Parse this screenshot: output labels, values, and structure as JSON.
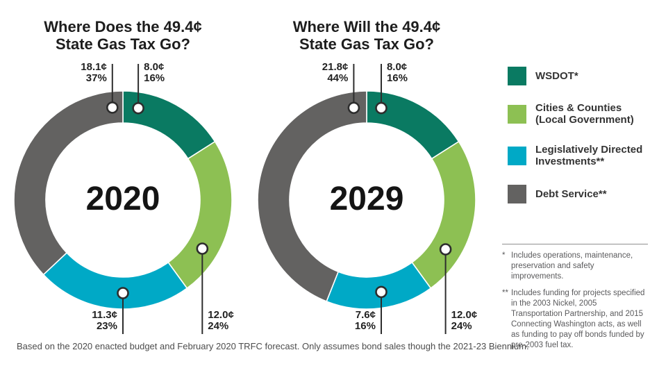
{
  "series_colors": {
    "wsdot": "#0a7a62",
    "cities": "#8dc053",
    "legislative": "#00a9c6",
    "debt": "#636261"
  },
  "charts": [
    {
      "title_line1": "Where Does the 49.4¢",
      "title_line2": "State Gas Tax Go?",
      "center_year": "2020",
      "segments": [
        {
          "key": "wsdot",
          "cents": "8.0¢",
          "pct": "16%",
          "value": 16,
          "marker_angle": 9.5,
          "dir": "up",
          "align": "left"
        },
        {
          "key": "cities",
          "cents": "12.0¢",
          "pct": "24%",
          "value": 24,
          "marker_angle": 121.5,
          "dir": "down",
          "align": "left"
        },
        {
          "key": "legislative",
          "cents": "11.3¢",
          "pct": "23%",
          "value": 23,
          "marker_angle": 180,
          "dir": "down",
          "align": "right"
        },
        {
          "key": "debt",
          "cents": "18.1¢",
          "pct": "37%",
          "value": 37,
          "marker_angle": -6.5,
          "dir": "up",
          "align": "right"
        }
      ]
    },
    {
      "title_line1": "Where Will the 49.4¢",
      "title_line2": "State Gas Tax Go?",
      "center_year": "2029",
      "segments": [
        {
          "key": "wsdot",
          "cents": "8.0¢",
          "pct": "16%",
          "value": 16,
          "marker_angle": 9,
          "dir": "up",
          "align": "left"
        },
        {
          "key": "cities",
          "cents": "12.0¢",
          "pct": "24%",
          "value": 24,
          "marker_angle": 122,
          "dir": "down",
          "align": "left"
        },
        {
          "key": "legislative",
          "cents": "7.6¢",
          "pct": "16%",
          "value": 16,
          "marker_angle": 171,
          "dir": "down",
          "align": "right"
        },
        {
          "key": "debt",
          "cents": "21.8¢",
          "pct": "44%",
          "value": 44,
          "marker_angle": -8,
          "dir": "up",
          "align": "right"
        }
      ]
    }
  ],
  "legend": {
    "items": [
      {
        "key": "wsdot",
        "lines": [
          "WSDOT*"
        ]
      },
      {
        "key": "cities",
        "lines": [
          "Cities & Counties",
          "(Local Government)"
        ]
      },
      {
        "key": "legislative",
        "lines": [
          "Legislatively Directed",
          "Investments**"
        ]
      },
      {
        "key": "debt",
        "lines": [
          "Debt Service**"
        ]
      }
    ]
  },
  "footnotes": [
    {
      "marker": "*",
      "text": "Includes operations, maintenance, preservation and safety improvements."
    },
    {
      "marker": "**",
      "text": "Includes funding for projects specified in the 2003 Nickel, 2005 Transportation Partnership, and 2015 Connecting Washington acts, as well as funding to pay off bonds funded by pre-2003 fuel tax."
    }
  ],
  "caption": "Based on the 2020 enacted budget and February 2020 TRFC forecast. Only assumes bond sales though the 2021-23 Biennium.",
  "chart_data": [
    {
      "type": "pie",
      "subtype": "donut",
      "title": "Where Does the 49.4¢ State Gas Tax Go?",
      "center_label": "2020",
      "unit": "cents of the 49.4¢ state gas tax",
      "slices": [
        {
          "label": "WSDOT",
          "cents": 8.0,
          "percent": 16
        },
        {
          "label": "Cities & Counties (Local Government)",
          "cents": 12.0,
          "percent": 24
        },
        {
          "label": "Legislatively Directed Investments",
          "cents": 11.3,
          "percent": 23
        },
        {
          "label": "Debt Service",
          "cents": 18.1,
          "percent": 37
        }
      ],
      "start_angle_deg": 0,
      "direction": "clockwise",
      "legend_position": "right"
    },
    {
      "type": "pie",
      "subtype": "donut",
      "title": "Where Will the 49.4¢ State Gas Tax Go?",
      "center_label": "2029",
      "unit": "cents of the 49.4¢ state gas tax",
      "slices": [
        {
          "label": "WSDOT",
          "cents": 8.0,
          "percent": 16
        },
        {
          "label": "Cities & Counties (Local Government)",
          "cents": 12.0,
          "percent": 24
        },
        {
          "label": "Legislatively Directed Investments",
          "cents": 7.6,
          "percent": 16
        },
        {
          "label": "Debt Service",
          "cents": 21.8,
          "percent": 44
        }
      ],
      "start_angle_deg": 0,
      "direction": "clockwise",
      "legend_position": "right"
    }
  ]
}
